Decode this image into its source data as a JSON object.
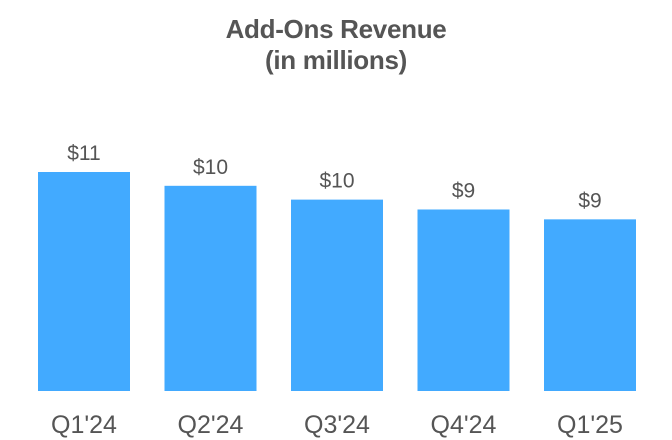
{
  "chart_data": {
    "type": "bar",
    "title": "Add-Ons Revenue",
    "subtitle": "(in millions)",
    "categories": [
      "Q1'24",
      "Q2'24",
      "Q3'24",
      "Q4'24",
      "Q1'25"
    ],
    "values": [
      11.1,
      10.4,
      9.7,
      9.2,
      8.7
    ],
    "data_labels": [
      "$11",
      "$10",
      "$10",
      "$9",
      "$9"
    ],
    "xlabel": "",
    "ylabel": "",
    "ylim": [
      0,
      11.1
    ],
    "grid": false,
    "legend": "none",
    "bar_color": "#42AAFF"
  }
}
